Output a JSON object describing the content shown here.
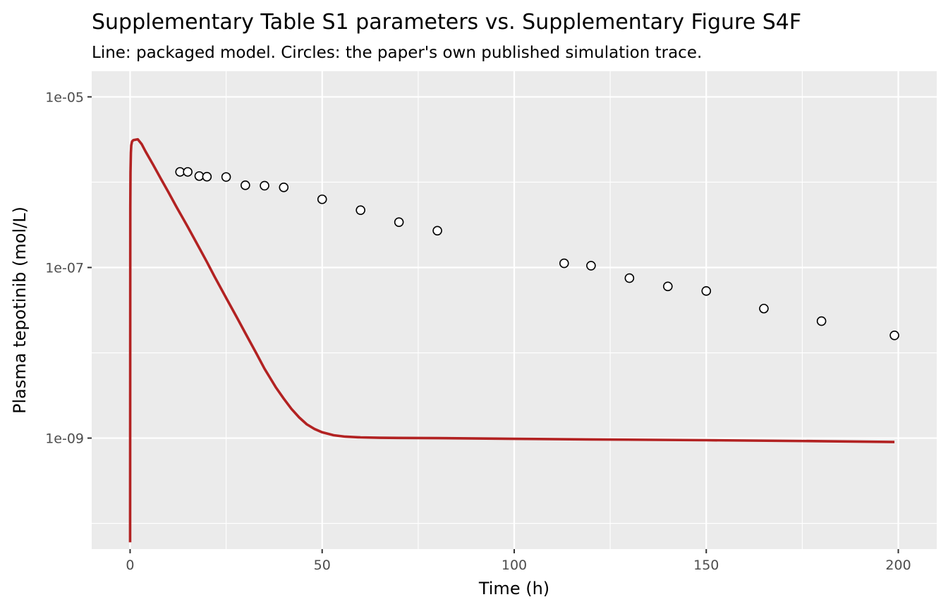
{
  "chart_data": {
    "type": "line",
    "title": "Supplementary Table S1 parameters vs. Supplementary Figure S4F",
    "subtitle": "Line: packaged model. Circles: the paper's own published simulation trace.",
    "xlabel": "Time (h)",
    "ylabel": "Plasma tepotinib (mol/L)",
    "y_scale": "log10",
    "xlim": [
      -10,
      210
    ],
    "ylim": [
      5e-11,
      2e-05
    ],
    "x_ticks": [
      0,
      50,
      100,
      150,
      200
    ],
    "x_tick_labels": [
      "0",
      "50",
      "100",
      "150",
      "200"
    ],
    "y_ticks": [
      1e-09,
      1e-07,
      1e-05
    ],
    "y_tick_labels": [
      "1e-09",
      "1e-07",
      "1e-05"
    ],
    "grid": true,
    "line_color": "#B22222",
    "series": [
      {
        "kind": "line",
        "x": [
          0,
          0.05,
          0.1,
          0.2,
          0.3,
          0.5,
          0.8,
          1.0,
          1.5,
          2.0,
          3,
          4,
          6,
          8,
          10,
          12,
          15,
          18,
          20,
          22,
          25,
          28,
          30,
          33,
          35,
          38,
          40,
          42,
          44,
          46,
          48,
          50,
          53,
          56,
          60,
          65,
          70,
          80,
          100,
          120,
          150,
          180,
          199
        ],
        "y": [
          6e-11,
          5e-07,
          1.3e-06,
          2.2e-06,
          2.7e-06,
          3e-06,
          3.1e-06,
          3.12e-06,
          3.15e-06,
          3.18e-06,
          2.8e-06,
          2.3e-06,
          1.6e-06,
          1.1e-06,
          7.6e-07,
          5.2e-07,
          3e-07,
          1.7e-07,
          1.16e-07,
          7.8e-08,
          4.4e-08,
          2.5e-08,
          1.7e-08,
          9.6e-09,
          6.5e-09,
          3.9e-09,
          2.9e-09,
          2.2e-09,
          1.75e-09,
          1.45e-09,
          1.28e-09,
          1.17e-09,
          1.08e-09,
          1.04e-09,
          1.02e-09,
          1.01e-09,
          1.005e-09,
          1e-09,
          9.8e-10,
          9.65e-10,
          9.45e-10,
          9.2e-10,
          9e-10
        ]
      },
      {
        "kind": "points",
        "x": [
          13,
          15,
          18,
          20,
          25,
          30,
          35,
          40,
          50,
          60,
          70,
          80,
          113,
          120,
          130,
          140,
          150,
          165,
          180,
          199
        ],
        "y": [
          1.32e-06,
          1.32e-06,
          1.18e-06,
          1.16e-06,
          1.15e-06,
          9.2e-07,
          9.1e-07,
          8.7e-07,
          6.3e-07,
          4.7e-07,
          3.4e-07,
          2.7e-07,
          1.12e-07,
          1.05e-07,
          7.5e-08,
          6e-08,
          5.3e-08,
          3.3e-08,
          2.35e-08,
          1.6e-08
        ]
      }
    ]
  }
}
